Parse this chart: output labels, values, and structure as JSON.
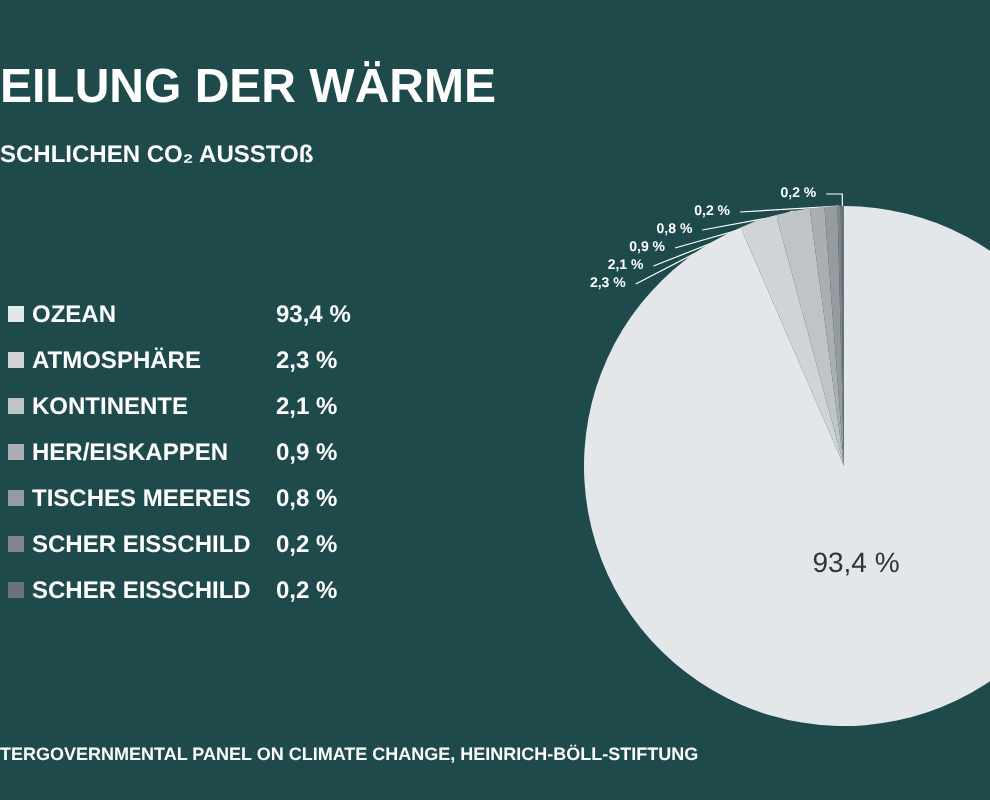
{
  "chart_data": {
    "type": "pie",
    "title": "EILUNG DER WÄRME",
    "subtitle": "SCHLICHEN CO₂ AUSSTOß",
    "categories": [
      "OZEAN",
      "ATMOSPHÄRE",
      "KONTINENTE",
      "HER/EISKAPPEN",
      "TISCHES MEEREIS",
      "SCHER EISSCHILD",
      "SCHER EISSCHILD"
    ],
    "values": [
      93.4,
      2.3,
      2.1,
      0.9,
      0.8,
      0.2,
      0.2
    ],
    "colors": [
      "#e4e7e9",
      "#d0d4d7",
      "#bfc4c7",
      "#a9afb3",
      "#959ba0",
      "#80878c",
      "#6c7378"
    ],
    "value_labels": [
      "93,4 %",
      "2,3 %",
      "2,1 %",
      "0,9 %",
      "0,8 %",
      "0,2 %",
      "0,2 %"
    ],
    "legend": "left",
    "annotations": [
      "TERGOVERNMENTAL PANEL ON CLIMATE CHANGE, HEINRICH-BÖLL-STIFTUNG"
    ]
  }
}
